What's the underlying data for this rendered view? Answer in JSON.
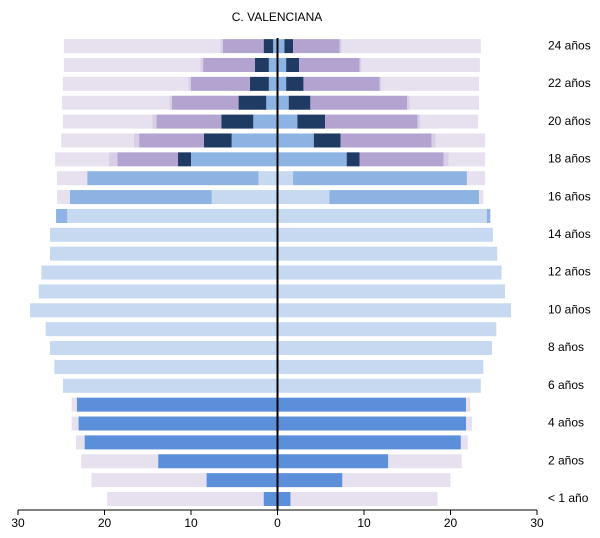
{
  "chart_data": {
    "type": "pyramid",
    "title": "C. VALENCIANA",
    "categories": [
      "< 1 año",
      null,
      "2 años",
      null,
      "4 años",
      null,
      "6 años",
      null,
      "8 años",
      null,
      "10 años",
      null,
      "12 años",
      null,
      "14 años",
      null,
      "16 años",
      null,
      "18 años",
      null,
      "20 años",
      null,
      "22 años",
      null,
      "24 años"
    ],
    "xlim": [
      -30,
      30
    ],
    "xticks": [
      {
        "value": -30,
        "label": "30"
      },
      {
        "value": -20,
        "label": "20"
      },
      {
        "value": -10,
        "label": "10"
      },
      0,
      10,
      20,
      30
    ],
    "series": [
      {
        "color": "#5b8fd9",
        "left": [
          1.6,
          8.2,
          13.8,
          22.3,
          23,
          23.2,
          0,
          0,
          0,
          0,
          0,
          0,
          0,
          0,
          0,
          0,
          0,
          0,
          0,
          0,
          0,
          0,
          0,
          0,
          0
        ],
        "right": [
          1.5,
          7.5,
          12.8,
          21.2,
          21.8,
          21.8,
          0,
          0,
          0,
          0,
          0,
          0,
          0,
          0,
          0,
          0,
          0,
          0,
          0,
          0,
          0,
          0,
          0,
          0,
          0
        ]
      },
      {
        "color": "#c6d9f1",
        "left": [
          0,
          0,
          0,
          0,
          0,
          0,
          24.8,
          25.8,
          26.3,
          26.8,
          28.6,
          27.6,
          27.3,
          26.3,
          26.3,
          24.3,
          7.6,
          2.2,
          0,
          0,
          0,
          0,
          0,
          0,
          0
        ],
        "right": [
          0,
          0,
          0,
          0,
          0,
          0,
          23.5,
          23.8,
          24.8,
          25.3,
          27,
          26.3,
          25.9,
          25.4,
          24.9,
          24.2,
          6,
          1.8,
          0,
          0,
          0,
          0,
          0,
          0,
          0
        ]
      },
      {
        "color": "#8db3e2",
        "left": [
          0,
          0,
          0,
          0,
          0,
          0,
          0,
          0,
          0,
          0,
          0,
          0,
          0,
          0,
          0,
          1.3,
          16.4,
          19.8,
          10,
          5.3,
          2.8,
          1.3,
          1,
          1,
          0.5
        ],
        "right": [
          0,
          0,
          0,
          0,
          0,
          0,
          0,
          0,
          0,
          0,
          0,
          0,
          0,
          0,
          0,
          0.4,
          17.3,
          20.1,
          8,
          4.2,
          2.3,
          1.3,
          1,
          1,
          0.8
        ]
      },
      {
        "color": "#1f3a63",
        "left": [
          0,
          0,
          0,
          0,
          0,
          0,
          0,
          0,
          0,
          0,
          0,
          0,
          0,
          0,
          0,
          0,
          0,
          0,
          1.5,
          3.2,
          3.7,
          3.2,
          2.2,
          1.6,
          1.1
        ],
        "right": [
          0,
          0,
          0,
          0,
          0,
          0,
          0,
          0,
          0,
          0,
          0,
          0,
          0,
          0,
          0,
          0,
          0,
          0,
          1.5,
          3.1,
          3.2,
          2.5,
          2,
          1.5,
          1
        ]
      },
      {
        "color": "#b3a3d1",
        "left": [
          0,
          0,
          0,
          0,
          0,
          0,
          0,
          0,
          0,
          0,
          0,
          0,
          0,
          0,
          0,
          0,
          0,
          0,
          7,
          7.5,
          7.5,
          7.7,
          6.8,
          6,
          4.7
        ],
        "right": [
          0,
          0,
          0,
          0,
          0,
          0,
          0,
          0,
          0,
          0,
          0,
          0,
          0,
          0,
          0,
          0,
          0,
          0,
          9.7,
          10.5,
          10.7,
          11.2,
          8.8,
          7,
          5.4
        ]
      },
      {
        "color": "#d8cfe6",
        "left": [
          0,
          0,
          0,
          0,
          0,
          0,
          0,
          0,
          0,
          0,
          0,
          0,
          0,
          0,
          0,
          0,
          0,
          0,
          1,
          0.6,
          0.5,
          0.3,
          0.3,
          0.3,
          0.3
        ],
        "right": [
          0,
          0,
          0,
          0,
          0,
          0,
          0,
          0,
          0,
          0,
          0,
          0,
          0,
          0,
          0,
          0,
          0,
          0,
          0.6,
          0.5,
          0.3,
          0.3,
          0.2,
          0.2,
          0.2
        ]
      },
      {
        "color": "#e7e1ef",
        "left": [
          18.1,
          13.3,
          8.9,
          1,
          0.8,
          0.6,
          0,
          0,
          0,
          0,
          0,
          0,
          0,
          0,
          0,
          0,
          1.5,
          3.5,
          6.2,
          8.4,
          10.3,
          12.4,
          14.5,
          15.8,
          18.1
        ],
        "right": [
          17,
          12.5,
          8.5,
          0.8,
          0.7,
          0.5,
          0,
          0,
          0,
          0,
          0,
          0,
          0,
          0,
          0,
          0,
          0.5,
          2.1,
          4.2,
          5.7,
          6.7,
          8,
          11.3,
          13.7,
          16.1
        ]
      }
    ]
  }
}
